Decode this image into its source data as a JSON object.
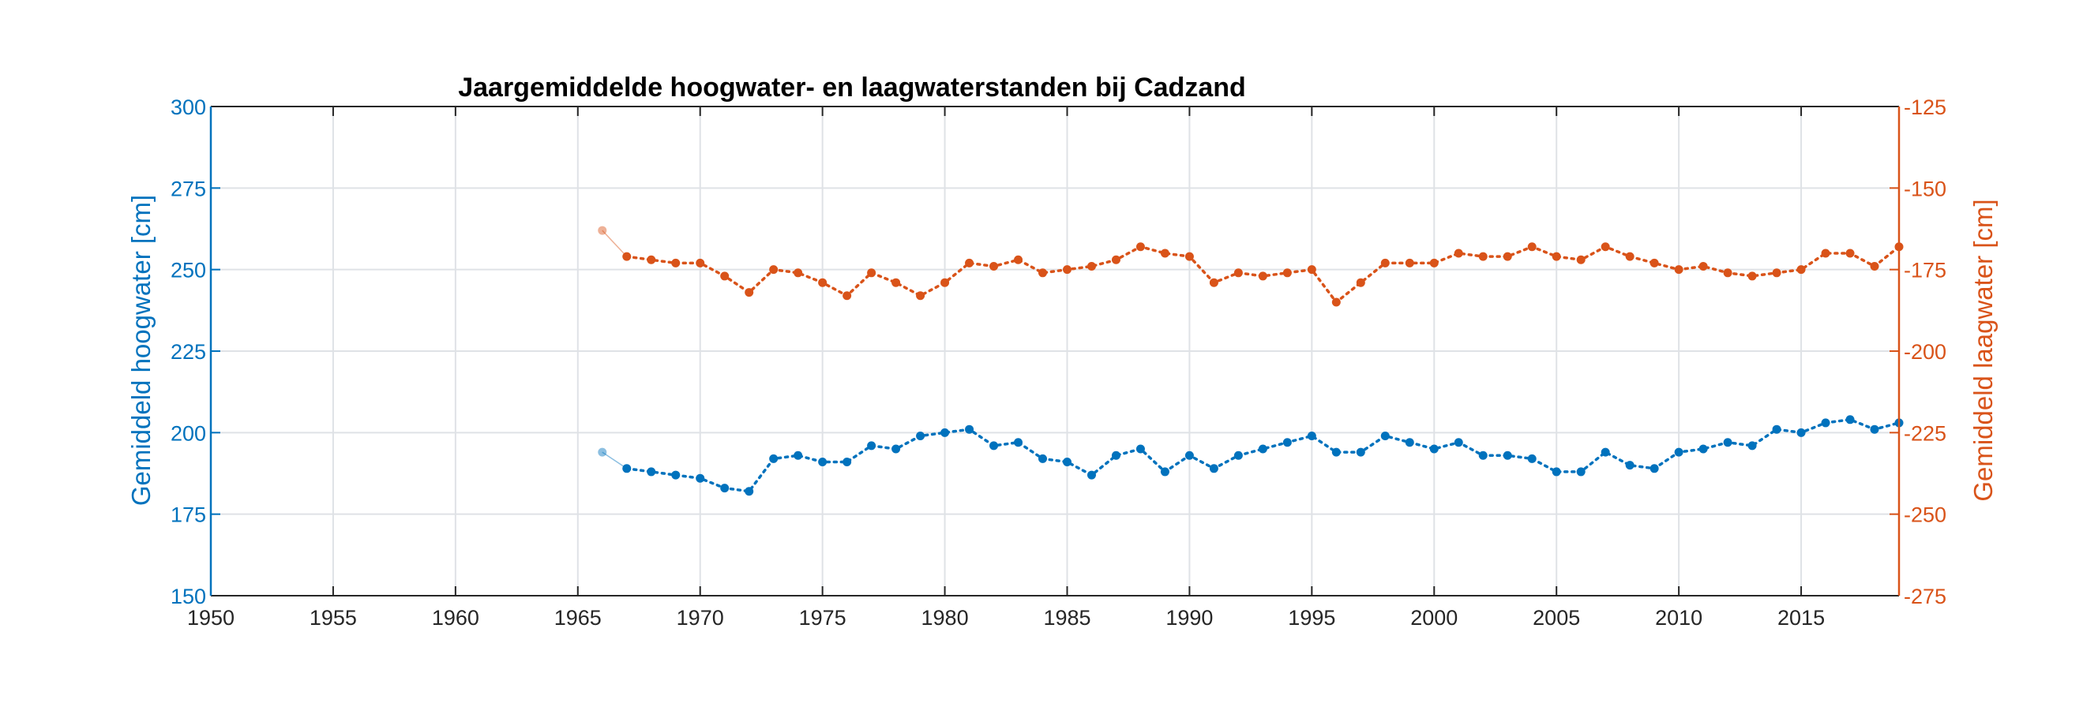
{
  "chart_data": {
    "type": "line",
    "title": "Jaargemiddelde hoogwater- en laagwaterstanden bij Cadzand",
    "xlabel": "",
    "xlim": [
      1950,
      2019
    ],
    "xticks": [
      "1950",
      "1955",
      "1960",
      "1965",
      "1970",
      "1975",
      "1980",
      "1985",
      "1990",
      "1995",
      "2000",
      "2005",
      "2010",
      "2015"
    ],
    "grid": true,
    "left_axis": {
      "label": "Gemiddeld hoogwater [cm]",
      "ylim": [
        150,
        300
      ],
      "ticks": [
        "150",
        "175",
        "200",
        "225",
        "250",
        "275",
        "300"
      ],
      "color": "#0072bd"
    },
    "right_axis": {
      "label": "Gemiddeld laagwater [cm]",
      "ylim": [
        -275,
        -125
      ],
      "ticks": [
        "-275",
        "-250",
        "-225",
        "-200",
        "-175",
        "-150",
        "-125"
      ],
      "color": "#d95319"
    },
    "series": [
      {
        "axis": "left",
        "color": "#0072bd",
        "first_point_faded": true,
        "x": [
          1966,
          1967,
          1968,
          1969,
          1970,
          1971,
          1972,
          1973,
          1974,
          1975,
          1976,
          1977,
          1978,
          1979,
          1980,
          1981,
          1982,
          1983,
          1984,
          1985,
          1986,
          1987,
          1988,
          1989,
          1990,
          1991,
          1992,
          1993,
          1994,
          1995,
          1996,
          1997,
          1998,
          1999,
          2000,
          2001,
          2002,
          2003,
          2004,
          2005,
          2006,
          2007,
          2008,
          2009,
          2010,
          2011,
          2012,
          2013,
          2014,
          2015,
          2016,
          2017,
          2018,
          2019
        ],
        "values": [
          194,
          189,
          188,
          187,
          186,
          183,
          182,
          192,
          193,
          191,
          191,
          196,
          195,
          199,
          200,
          201,
          196,
          197,
          192,
          191,
          187,
          193,
          195,
          188,
          193,
          189,
          193,
          195,
          197,
          199,
          194,
          194,
          199,
          197,
          195,
          197,
          193,
          193,
          192,
          188,
          188,
          194,
          190,
          189,
          194,
          195,
          197,
          196,
          201,
          200,
          203,
          204,
          201,
          203
        ]
      },
      {
        "axis": "right",
        "color": "#d95319",
        "first_point_faded": true,
        "x": [
          1966,
          1967,
          1968,
          1969,
          1970,
          1971,
          1972,
          1973,
          1974,
          1975,
          1976,
          1977,
          1978,
          1979,
          1980,
          1981,
          1982,
          1983,
          1984,
          1985,
          1986,
          1987,
          1988,
          1989,
          1990,
          1991,
          1992,
          1993,
          1994,
          1995,
          1996,
          1997,
          1998,
          1999,
          2000,
          2001,
          2002,
          2003,
          2004,
          2005,
          2006,
          2007,
          2008,
          2009,
          2010,
          2011,
          2012,
          2013,
          2014,
          2015,
          2016,
          2017,
          2018,
          2019
        ],
        "values": [
          -163,
          -171,
          -172,
          -173,
          -173,
          -177,
          -182,
          -175,
          -176,
          -179,
          -183,
          -176,
          -179,
          -183,
          -179,
          -173,
          -174,
          -172,
          -176,
          -175,
          -174,
          -172,
          -168,
          -170,
          -171,
          -179,
          -176,
          -177,
          -176,
          -175,
          -185,
          -179,
          -173,
          -173,
          -173,
          -170,
          -171,
          -171,
          -168,
          -171,
          -172,
          -168,
          -171,
          -173,
          -175,
          -174,
          -176,
          -177,
          -176,
          -175,
          -170,
          -170,
          -174,
          -168
        ]
      }
    ]
  }
}
